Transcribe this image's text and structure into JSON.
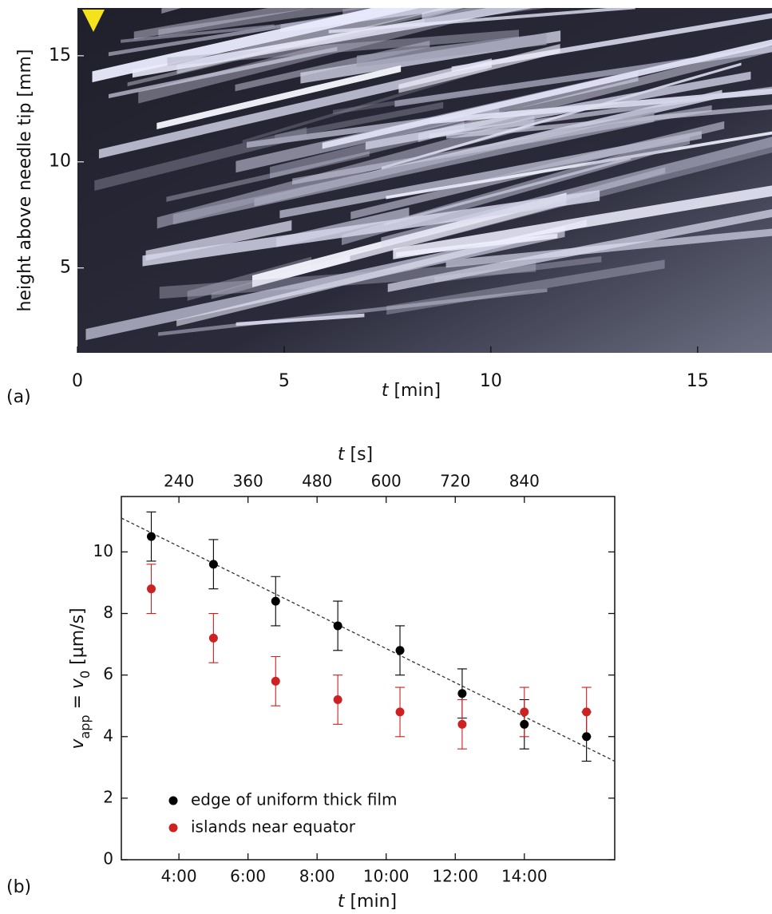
{
  "chart_data": [
    {
      "type": "image",
      "panel_label": "(a)",
      "x_label": [
        "t",
        " [min]"
      ],
      "y_label": "height above needle tip [mm]",
      "xlim": [
        0,
        16.8
      ],
      "xticks": [
        0,
        5,
        10,
        15
      ],
      "ylim": [
        1,
        17.25
      ],
      "yticks": [
        5,
        10,
        15
      ]
    },
    {
      "type": "scatter",
      "panel_label": "(b)",
      "x_label": [
        "t",
        " [min]"
      ],
      "x2_label": [
        "t",
        " [s]"
      ],
      "y_label": [
        "v",
        "app",
        " = ",
        "v",
        "0",
        "  [µm/s]"
      ],
      "xlim": [
        140,
        997
      ],
      "ylim": [
        0,
        11.8
      ],
      "xticks": [
        {
          "value": 240,
          "label": "4:00"
        },
        {
          "value": 360,
          "label": "6:00"
        },
        {
          "value": 480,
          "label": "8:00"
        },
        {
          "value": 600,
          "label": "10:00"
        },
        {
          "value": 720,
          "label": "12:00"
        },
        {
          "value": 840,
          "label": "14:00"
        }
      ],
      "x2ticks": [
        240,
        360,
        480,
        600,
        720,
        840
      ],
      "yticks": [
        0,
        2,
        4,
        6,
        8,
        10
      ],
      "legend": "lower left",
      "series": [
        {
          "name": "edge of uniform thick film",
          "color": "#000000",
          "x": [
            192,
            300,
            408,
            516,
            624,
            732,
            840,
            948
          ],
          "values": [
            10.5,
            9.6,
            8.4,
            7.6,
            6.8,
            5.4,
            4.4,
            4.0
          ],
          "errors": [
            0.8,
            0.8,
            0.8,
            0.8,
            0.8,
            0.8,
            0.8,
            0.8
          ]
        },
        {
          "name": "islands near equator",
          "color": "#cc2222",
          "x": [
            192,
            300,
            408,
            516,
            624,
            732,
            840,
            948
          ],
          "values": [
            8.8,
            7.2,
            5.8,
            5.2,
            4.8,
            4.4,
            4.8,
            4.8
          ],
          "errors": [
            0.8,
            0.8,
            0.8,
            0.8,
            0.8,
            0.8,
            0.8,
            0.8
          ]
        }
      ],
      "fit": {
        "style": "dashed",
        "color": "#333333",
        "x": [
          140,
          997
        ],
        "values": [
          11.1,
          3.2
        ]
      }
    }
  ]
}
